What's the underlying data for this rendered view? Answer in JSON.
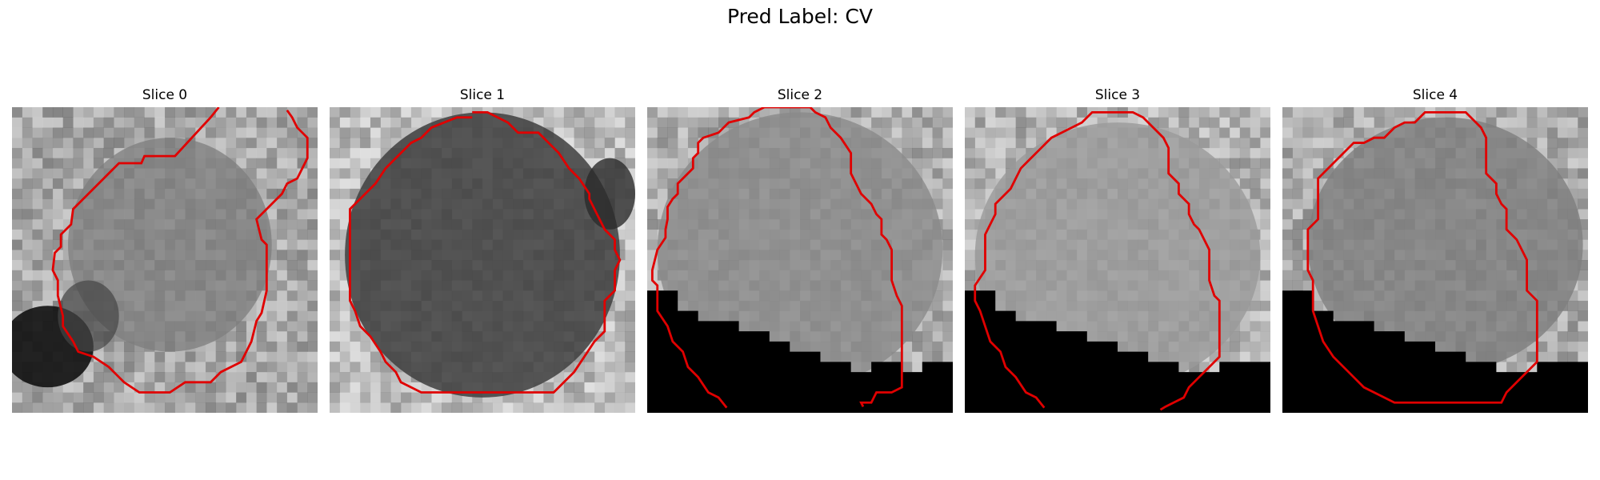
{
  "figure": {
    "suptitle": "Pred Label: CV"
  },
  "slices": [
    {
      "title": "Slice 0",
      "background": "mottled-grey-ct",
      "dark_region": "bottom-left-blob",
      "contour_color": "#e00000"
    },
    {
      "title": "Slice 1",
      "background": "dark-grey-ct",
      "dark_region": "none",
      "contour_color": "#e00000"
    },
    {
      "title": "Slice 2",
      "background": "grey-ct",
      "dark_region": "bottom-black-wedge",
      "contour_color": "#e00000"
    },
    {
      "title": "Slice 3",
      "background": "light-grey-ct",
      "dark_region": "bottom-black-wedge",
      "contour_color": "#e00000"
    },
    {
      "title": "Slice 4",
      "background": "grey-ct",
      "dark_region": "bottom-black-wedge",
      "contour_color": "#e00000"
    }
  ]
}
